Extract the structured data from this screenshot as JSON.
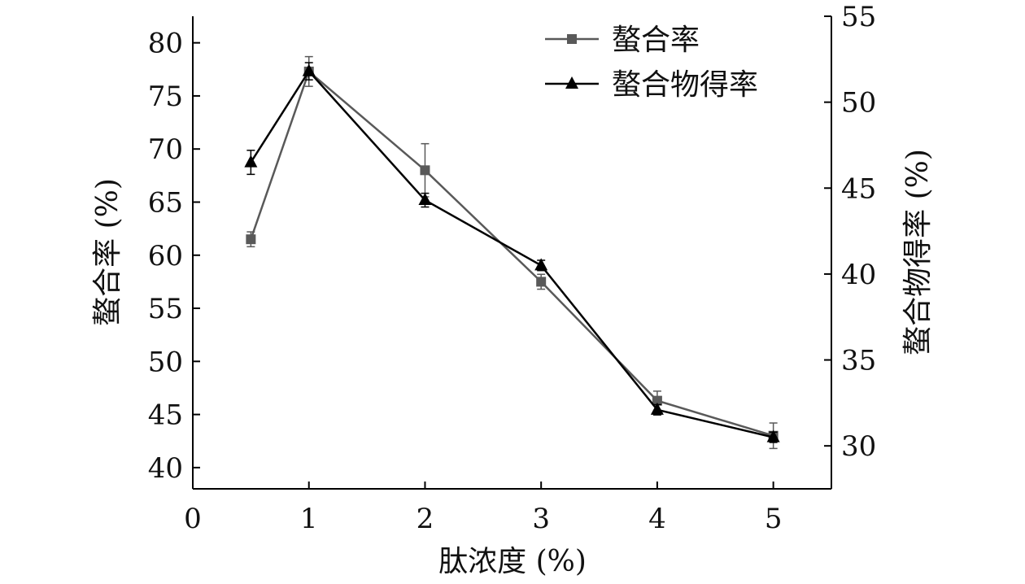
{
  "chart_data": {
    "type": "line",
    "title": "",
    "x": [
      0.5,
      1,
      2,
      3,
      4,
      5
    ],
    "xlabel": "肽浓度 (%)",
    "ylabel_left": "螯合率 (%)",
    "ylabel_right": "螯合物得率 (%)",
    "xlim": [
      0,
      5.5
    ],
    "ylim_left": [
      38,
      82.5
    ],
    "ylim_right": [
      27.5,
      55
    ],
    "xticks": [
      0,
      1,
      2,
      3,
      4,
      5
    ],
    "yticks_left": [
      40,
      45,
      50,
      55,
      60,
      65,
      70,
      75,
      80
    ],
    "yticks_right": [
      30,
      35,
      40,
      45,
      50,
      55
    ],
    "grid": false,
    "legend_position": "top-right",
    "series": [
      {
        "name": "螯合率",
        "axis": "left",
        "marker": "square",
        "color": "#595959",
        "values": [
          61.5,
          77.3,
          68.0,
          57.5,
          46.3,
          43.0
        ],
        "errors": [
          0.7,
          1.4,
          2.5,
          0.7,
          0.9,
          1.2
        ]
      },
      {
        "name": "螯合物得率",
        "axis": "right",
        "marker": "triangle",
        "color": "#000000",
        "values": [
          46.5,
          51.8,
          44.3,
          40.5,
          32.1,
          30.5
        ],
        "errors": [
          0.7,
          0.5,
          0.4,
          0.3,
          0.3,
          0.3
        ]
      }
    ]
  }
}
